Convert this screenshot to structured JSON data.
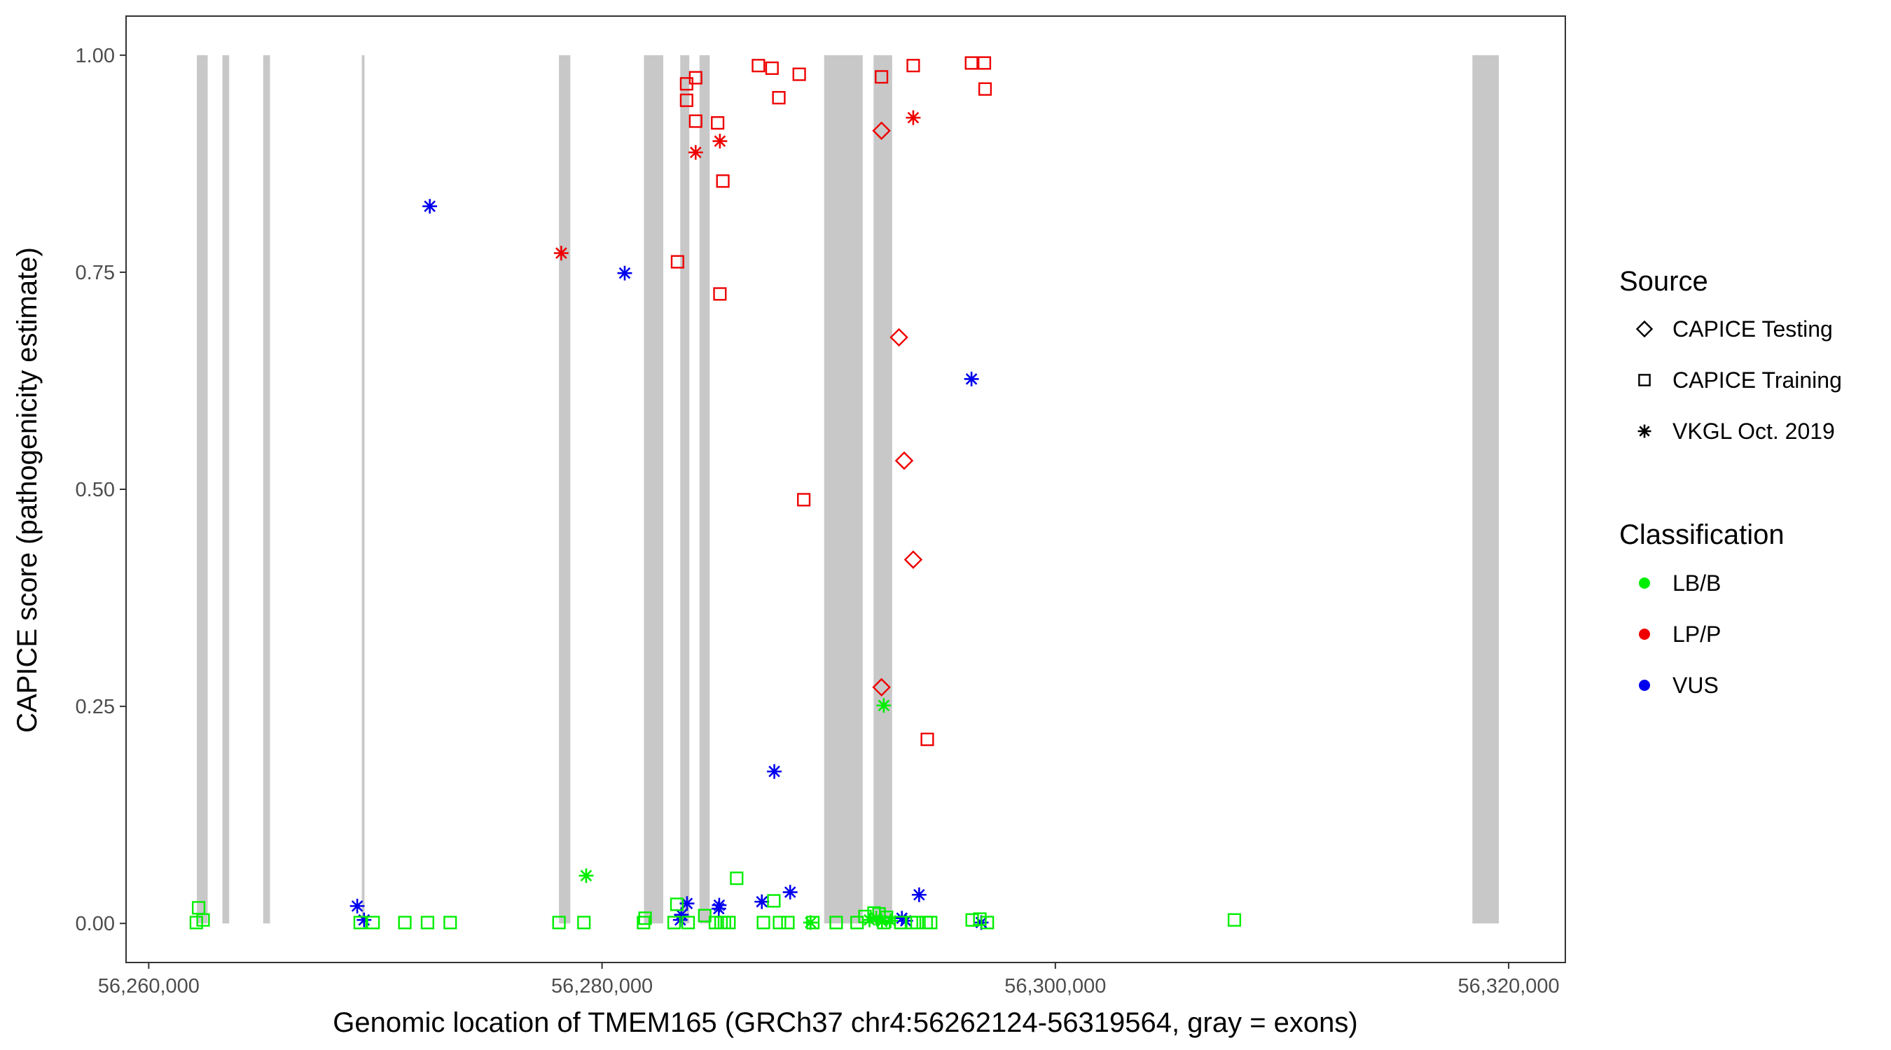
{
  "chart_data": {
    "type": "scatter",
    "xlabel": "Genomic location of TMEM165 (GRCh37 chr4:56262124-56319564, gray = exons)",
    "ylabel": "CAPICE score (pathogenicity estimate)",
    "xlim": [
      56259000,
      56322500
    ],
    "ylim": [
      -0.045,
      1.045
    ],
    "x_ticks": [
      56260000,
      56280000,
      56300000,
      56320000
    ],
    "x_tick_labels": [
      "56,260,000",
      "56,280,000",
      "56,300,000",
      "56,320,000"
    ],
    "y_ticks": [
      0,
      0.25,
      0.5,
      0.75,
      1.0
    ],
    "y_tick_labels": [
      "0.00",
      "0.25",
      "0.50",
      "0.75",
      "1.00"
    ],
    "exon_color": "#c8c8c8",
    "exons": [
      [
        56262124,
        56262600
      ],
      [
        56263250,
        56263550
      ],
      [
        56265050,
        56265350
      ],
      [
        56269400,
        56269520
      ],
      [
        56278100,
        56278600
      ],
      [
        56281850,
        56282700
      ],
      [
        56283450,
        56283850
      ],
      [
        56284300,
        56284750
      ],
      [
        56289800,
        56291500
      ],
      [
        56291980,
        56292800
      ],
      [
        56318400,
        56319564
      ]
    ],
    "legend": {
      "source_title": "Source",
      "source_entries": [
        {
          "label": "CAPICE Testing",
          "shape": "diamond"
        },
        {
          "label": "CAPICE Training",
          "shape": "square"
        },
        {
          "label": "VKGL Oct. 2019",
          "shape": "asterisk"
        }
      ],
      "class_title": "Classification",
      "class_entries": [
        {
          "label": "LB/B",
          "color": "#00ee00"
        },
        {
          "label": "LP/P",
          "color": "#ee0000"
        },
        {
          "label": "VUS",
          "color": "#0000ee"
        }
      ]
    },
    "series": [
      {
        "source": "CAPICE Testing",
        "class": "LP/P",
        "points": [
          [
            56293100,
            0.675
          ],
          [
            56293330,
            0.533
          ],
          [
            56293730,
            0.419
          ],
          [
            56292330,
            0.913
          ],
          [
            56292330,
            0.272
          ]
        ]
      },
      {
        "source": "CAPICE Training",
        "class": "LP/P",
        "points": [
          [
            56283330,
            0.762
          ],
          [
            56283730,
            0.967
          ],
          [
            56283730,
            0.948
          ],
          [
            56284130,
            0.974
          ],
          [
            56284130,
            0.924
          ],
          [
            56285100,
            0.922
          ],
          [
            56285200,
            0.725
          ],
          [
            56285330,
            0.855
          ],
          [
            56286900,
            0.988
          ],
          [
            56287500,
            0.985
          ],
          [
            56287800,
            0.951
          ],
          [
            56288700,
            0.978
          ],
          [
            56288900,
            0.488
          ],
          [
            56292330,
            0.975
          ],
          [
            56293730,
            0.988
          ],
          [
            56294350,
            0.212
          ],
          [
            56296300,
            0.991
          ],
          [
            56296870,
            0.991
          ],
          [
            56296900,
            0.961
          ]
        ]
      },
      {
        "source": "VKGL Oct. 2019",
        "class": "LP/P",
        "points": [
          [
            56278200,
            0.772
          ],
          [
            56284130,
            0.888
          ],
          [
            56285200,
            0.901
          ],
          [
            56293730,
            0.928
          ]
        ]
      },
      {
        "source": "VKGL Oct. 2019",
        "class": "VUS",
        "points": [
          [
            56272400,
            0.826
          ],
          [
            56281000,
            0.749
          ],
          [
            56287600,
            0.175
          ],
          [
            56296300,
            0.627
          ],
          [
            56288300,
            0.036
          ],
          [
            56293990,
            0.033
          ],
          [
            56269200,
            0.02
          ],
          [
            56269500,
            0.004
          ],
          [
            56283750,
            0.023
          ],
          [
            56283500,
            0.01
          ],
          [
            56283450,
            0.004
          ],
          [
            56285170,
            0.021
          ],
          [
            56285150,
            0.017
          ],
          [
            56287050,
            0.025
          ],
          [
            56293230,
            0.006
          ],
          [
            56293400,
            0.003
          ],
          [
            56296730,
            0.001
          ]
        ]
      },
      {
        "source": "VKGL Oct. 2019",
        "class": "LB/B",
        "points": [
          [
            56279300,
            0.055
          ],
          [
            56292430,
            0.251
          ],
          [
            56289200,
            0.001
          ],
          [
            56291800,
            0.004
          ],
          [
            56292100,
            0.006
          ],
          [
            56292350,
            0.002
          ],
          [
            56292730,
            0.003
          ]
        ]
      },
      {
        "source": "CAPICE Training",
        "class": "LB/B",
        "points": [
          [
            56262200,
            0.018
          ],
          [
            56262400,
            0.004
          ],
          [
            56262100,
            0.001
          ],
          [
            56269330,
            0.001
          ],
          [
            56269900,
            0.001
          ],
          [
            56271300,
            0.001
          ],
          [
            56272300,
            0.001
          ],
          [
            56273300,
            0.001
          ],
          [
            56278100,
            0.001
          ],
          [
            56279200,
            0.001
          ],
          [
            56281900,
            0.006
          ],
          [
            56281830,
            0.001
          ],
          [
            56283180,
            0.001
          ],
          [
            56283300,
            0.022
          ],
          [
            56283800,
            0.001
          ],
          [
            56284530,
            0.009
          ],
          [
            56285000,
            0.001
          ],
          [
            56285250,
            0.001
          ],
          [
            56285400,
            0.001
          ],
          [
            56285600,
            0.001
          ],
          [
            56285940,
            0.052
          ],
          [
            56287120,
            0.001
          ],
          [
            56287580,
            0.026
          ],
          [
            56287830,
            0.001
          ],
          [
            56288200,
            0.001
          ],
          [
            56289300,
            0.001
          ],
          [
            56290330,
            0.001
          ],
          [
            56291250,
            0.001
          ],
          [
            56291600,
            0.008
          ],
          [
            56292000,
            0.012
          ],
          [
            56292220,
            0.011
          ],
          [
            56292430,
            0.001
          ],
          [
            56292550,
            0.007
          ],
          [
            56293180,
            0.001
          ],
          [
            56293650,
            0.001
          ],
          [
            56293900,
            0.001
          ],
          [
            56294300,
            0.001
          ],
          [
            56294500,
            0.001
          ],
          [
            56296330,
            0.004
          ],
          [
            56296670,
            0.005
          ],
          [
            56297000,
            0.001
          ],
          [
            56307900,
            0.004
          ]
        ]
      }
    ]
  }
}
